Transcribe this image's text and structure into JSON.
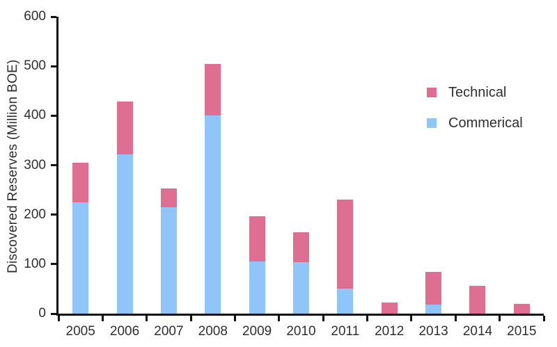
{
  "chart_data": {
    "type": "bar",
    "stacked": true,
    "title": "",
    "xlabel": "",
    "ylabel": "Discovered Reserves (Million BOE)",
    "categories": [
      "2005",
      "2006",
      "2007",
      "2008",
      "2009",
      "2010",
      "2011",
      "2012",
      "2013",
      "2014",
      "2015"
    ],
    "series": [
      {
        "name": "Commerical",
        "color": "#8FC5F8",
        "values": [
          225,
          322,
          215,
          400,
          105,
          104,
          51,
          0,
          18,
          0,
          0
        ]
      },
      {
        "name": "Technical",
        "color": "#DE6E92",
        "values": [
          80,
          107,
          38,
          105,
          92,
          61,
          180,
          22,
          66,
          56,
          19
        ]
      }
    ],
    "totals": [
      305,
      429,
      253,
      505,
      197,
      165,
      231,
      22,
      84,
      56,
      19
    ],
    "ylim": [
      0,
      600
    ],
    "yticks": [
      0,
      100,
      200,
      300,
      400,
      500,
      600
    ],
    "grid": false,
    "legend_position": "upper-right",
    "legend": [
      {
        "label": "Technical",
        "color": "#DE6E92"
      },
      {
        "label": "Commerical",
        "color": "#8FC5F8"
      }
    ]
  },
  "colors": {
    "axis": "#111111",
    "text": "#2E2E2E",
    "background": "#FFFFFF"
  }
}
